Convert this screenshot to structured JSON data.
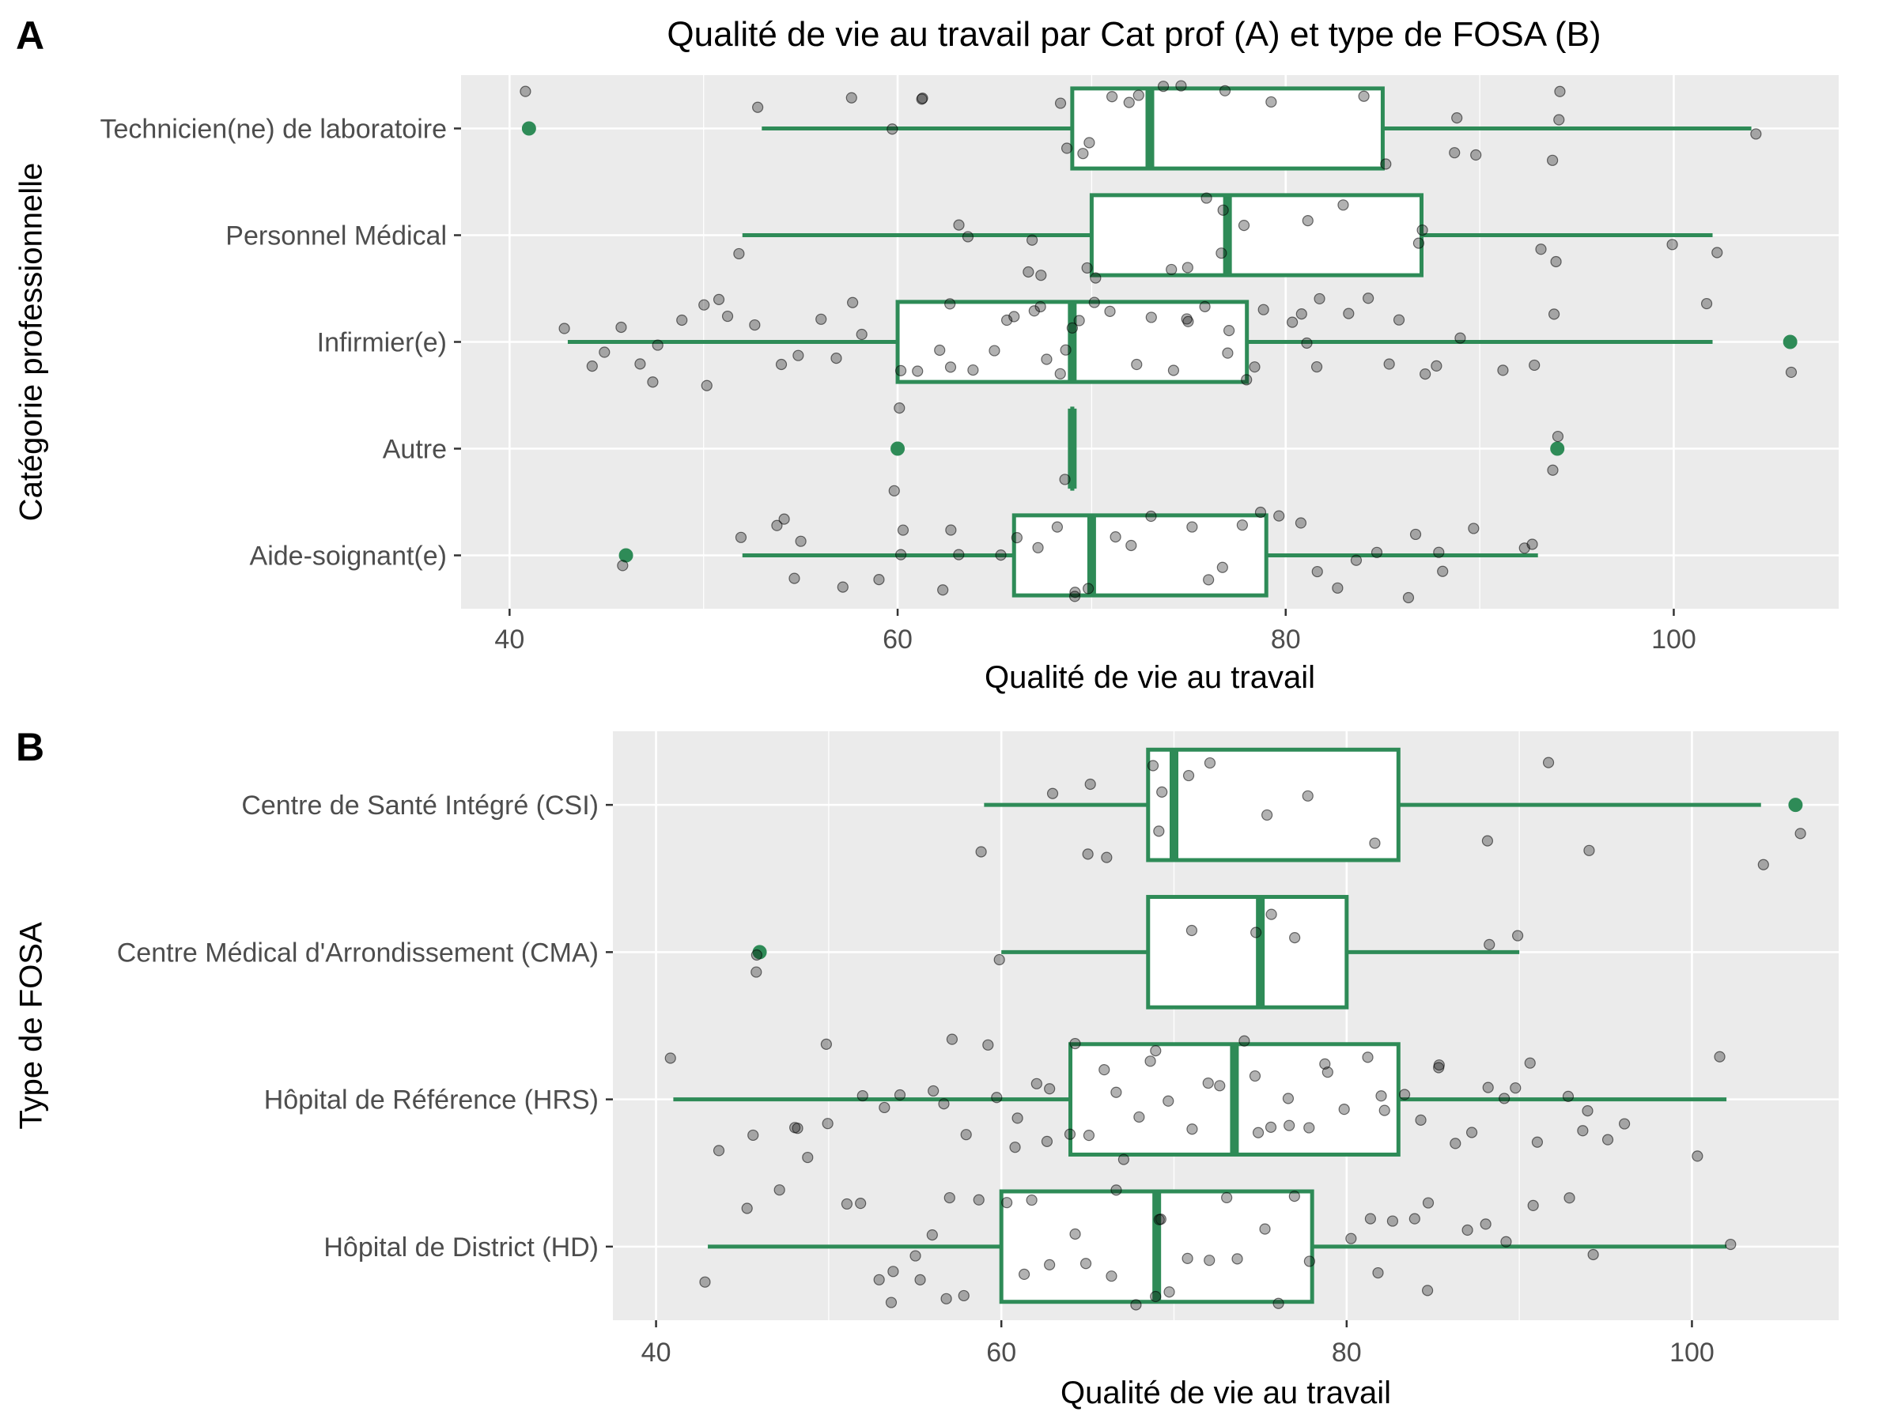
{
  "figure": {
    "title": "Qualité de vie au travail par Cat prof (A) et type de FOSA (B)"
  },
  "colors": {
    "panel_bg": "#EBEBEB",
    "grid": "#FFFFFF",
    "box": "#2E8B57",
    "outlier": "#2E8B57",
    "points": "#000000",
    "tick_label": "#4D4D4D",
    "axis_title": "#000000"
  },
  "chart_data": [
    {
      "type": "boxplot",
      "panel_tag": "A",
      "title": "Qualité de vie au travail par Cat prof (A) et type de FOSA (B)",
      "xlabel": "Qualité de vie au travail",
      "ylabel": "Catégorie professionnelle",
      "xlim": [
        37.5,
        108.5
      ],
      "xticks": [
        40,
        60,
        80,
        100
      ],
      "grid": true,
      "categories": [
        "Technicien(ne) de laboratoire",
        "Personnel Médical",
        "Infirmier(e)",
        "Autre",
        "Aide-soignant(e)"
      ],
      "boxes": [
        {
          "category": "Technicien(ne) de laboratoire",
          "whisker_low": 53,
          "q1": 69,
          "median": 73,
          "q3": 85,
          "whisker_high": 104,
          "outliers": [
            41
          ]
        },
        {
          "category": "Personnel Médical",
          "whisker_low": 52,
          "q1": 70,
          "median": 77,
          "q3": 87,
          "whisker_high": 102,
          "outliers": []
        },
        {
          "category": "Infirmier(e)",
          "whisker_low": 43,
          "q1": 60,
          "median": 69,
          "q3": 78,
          "whisker_high": 102,
          "outliers": [
            106
          ]
        },
        {
          "category": "Autre",
          "whisker_low": 69,
          "q1": 69,
          "median": 69,
          "q3": 69,
          "whisker_high": 69,
          "outliers": [
            60,
            94
          ]
        },
        {
          "category": "Aide-soignant(e)",
          "whisker_low": 52,
          "q1": 66,
          "median": 70,
          "q3": 79,
          "whisker_high": 93,
          "outliers": [
            46
          ]
        }
      ],
      "jitter_points": [
        {
          "category": "Technicien(ne) de laboratoire",
          "values": [
            41,
            53,
            58,
            60,
            61,
            61,
            68.5,
            69,
            69.5,
            70,
            71,
            72,
            72.5,
            74,
            75,
            77,
            79,
            84,
            85,
            89,
            89,
            89.5,
            94,
            94,
            94,
            104
          ]
        },
        {
          "category": "Personnel Médical",
          "values": [
            52,
            64,
            63,
            67,
            67,
            67,
            70,
            70,
            74,
            75,
            76,
            77,
            77,
            78,
            81,
            83,
            87,
            87,
            93,
            94,
            100,
            102
          ]
        },
        {
          "category": "Infirmier(e)",
          "values": [
            43,
            44,
            45,
            46,
            47,
            47,
            48,
            49,
            50,
            50,
            51,
            51,
            53,
            54,
            55,
            56,
            57,
            58,
            58,
            60,
            61,
            62,
            63,
            63,
            64,
            65,
            66,
            66,
            67,
            67,
            68,
            68,
            69,
            69,
            69,
            70,
            71,
            72,
            73,
            74,
            75,
            75,
            76,
            77,
            77,
            78,
            78,
            79,
            80,
            81,
            81,
            82,
            82,
            83,
            84,
            85,
            86,
            87,
            88,
            89,
            91,
            93,
            94,
            102,
            106
          ]
        },
        {
          "category": "Autre",
          "values": [
            60,
            60,
            69,
            94,
            94
          ]
        },
        {
          "category": "Aide-soignant(e)",
          "values": [
            46,
            52,
            54,
            54,
            55,
            55,
            57,
            59,
            60,
            60,
            62,
            63,
            63,
            65,
            66,
            67,
            68,
            69,
            69,
            70,
            71,
            72,
            73,
            75,
            76,
            77,
            78,
            79,
            80,
            81,
            82,
            83,
            84,
            85,
            86,
            87,
            88,
            88,
            90,
            92,
            93
          ]
        }
      ]
    },
    {
      "type": "boxplot",
      "panel_tag": "B",
      "title": "",
      "xlabel": "Qualité de vie au travail",
      "ylabel": "Type de FOSA",
      "xlim": [
        37.5,
        108.5
      ],
      "xticks": [
        40,
        60,
        80,
        100
      ],
      "grid": true,
      "categories": [
        "Centre de Santé Intégré (CSI)",
        "Centre Médical d'Arrondissement (CMA)",
        "Hôpital de Référence (HRS)",
        "Hôpital de District (HD)"
      ],
      "boxes": [
        {
          "category": "Centre de Santé Intégré (CSI)",
          "whisker_low": 59,
          "q1": 68.5,
          "median": 70,
          "q3": 83,
          "whisker_high": 104,
          "outliers": [
            106
          ]
        },
        {
          "category": "Centre Médical d'Arrondissement (CMA)",
          "whisker_low": 60,
          "q1": 68.5,
          "median": 75,
          "q3": 80,
          "whisker_high": 90,
          "outliers": [
            46
          ]
        },
        {
          "category": "Hôpital de Référence (HRS)",
          "whisker_low": 41,
          "q1": 64,
          "median": 73.5,
          "q3": 83,
          "whisker_high": 102,
          "outliers": []
        },
        {
          "category": "Hôpital de District (HD)",
          "whisker_low": 43,
          "q1": 60,
          "median": 69,
          "q3": 78,
          "whisker_high": 102,
          "outliers": []
        }
      ],
      "jitter_points": [
        {
          "category": "Centre de Santé Intégré (CSI)",
          "values": [
            59,
            63,
            65,
            65,
            66,
            69,
            69,
            69,
            71,
            72,
            75,
            78,
            82,
            88,
            92,
            94,
            104,
            106
          ]
        },
        {
          "category": "Centre Médical d'Arrondissement (CMA)",
          "values": [
            46,
            46,
            60,
            71,
            75,
            76,
            77,
            88,
            90
          ]
        },
        {
          "category": "Hôpital de Référence (HRS)",
          "values": [
            41,
            44,
            46,
            48,
            48,
            49,
            50,
            50,
            52,
            53,
            54,
            56,
            57,
            57,
            58,
            59,
            60,
            61,
            61,
            62,
            63,
            63,
            64,
            64,
            65,
            66,
            67,
            67,
            68,
            69,
            69,
            70,
            71,
            72,
            73,
            74,
            75,
            75,
            76,
            77,
            77,
            78,
            79,
            79,
            80,
            81,
            82,
            82,
            83,
            84,
            85,
            85,
            86,
            87,
            88,
            89,
            90,
            91,
            91,
            93,
            94,
            94,
            95,
            96,
            100,
            102
          ]
        },
        {
          "category": "Hôpital de District (HD)",
          "values": [
            43,
            45,
            47,
            51,
            52,
            53,
            54,
            54,
            55,
            55,
            56,
            57,
            57,
            58,
            59,
            60,
            61,
            62,
            63,
            64,
            65,
            66,
            67,
            68,
            69,
            69,
            69,
            70,
            71,
            72,
            73,
            74,
            75,
            76,
            77,
            78,
            80,
            81,
            82,
            83,
            84,
            85,
            85,
            87,
            88,
            89,
            91,
            93,
            94,
            102
          ]
        }
      ]
    }
  ]
}
